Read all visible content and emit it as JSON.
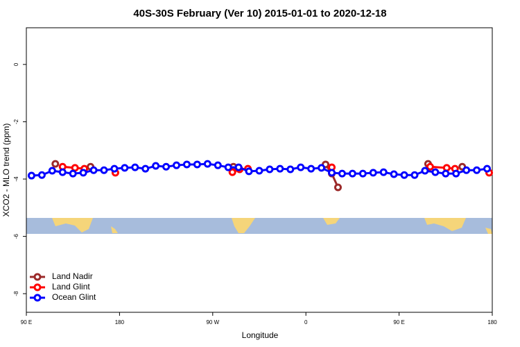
{
  "chart_data": {
    "type": "line",
    "title": "40S-30S February (Ver 10)   2015-01-01 to 2020-12-18",
    "x_label": "Longitude",
    "y_label": "XCO2 - MLO trend (ppm)",
    "xlim": [
      90,
      540
    ],
    "xticks": [
      {
        "value": 90,
        "label": "90 E"
      },
      180,
      {
        "value": 270,
        "label": "90 W"
      },
      {
        "value": 360,
        "label": "0"
      },
      {
        "value": 450,
        "label": "90 E"
      },
      {
        "value": 540,
        "label": "180"
      }
    ],
    "ylim": [
      -8.65,
      1.28
    ],
    "yticks": [
      0,
      -2,
      -4,
      -6,
      -8
    ],
    "legend": "bottom-left",
    "series": [
      {
        "name": "Land Nadir",
        "color": "#9b2a2a",
        "x": [
          118,
          null,
          152,
          null,
          290,
          null,
          379,
          385,
          391,
          null,
          478,
          null,
          511
        ],
        "values": [
          -3.47,
          null,
          -3.57,
          null,
          -3.57,
          null,
          -3.49,
          -3.81,
          -4.29,
          null,
          -3.47,
          null,
          -3.57
        ]
      },
      {
        "name": "Land Glint",
        "color": "#ff0000",
        "x": [
          125,
          137,
          146,
          null,
          176,
          null,
          289,
          296,
          304,
          null,
          385,
          null,
          480,
          496,
          504,
          null,
          537
        ],
        "values": [
          -3.57,
          -3.61,
          -3.64,
          null,
          -3.78,
          null,
          -3.76,
          -3.66,
          -3.64,
          null,
          -3.59,
          null,
          -3.57,
          -3.61,
          -3.64,
          null,
          -3.78
        ]
      },
      {
        "name": "Ocean Glint",
        "color": "#0000ff",
        "x": [
          95,
          105,
          115,
          125,
          135,
          145,
          155,
          165,
          175,
          185,
          195,
          205,
          215,
          225,
          235,
          245,
          255,
          265,
          275,
          285,
          295,
          305,
          315,
          325,
          335,
          345,
          355,
          365,
          375,
          385,
          395,
          405,
          415,
          425,
          435,
          445,
          455,
          465,
          475,
          485,
          495,
          505,
          515,
          525,
          535
        ],
        "values": [
          -3.88,
          -3.86,
          -3.71,
          -3.76,
          -3.81,
          -3.78,
          -3.69,
          -3.69,
          -3.64,
          -3.61,
          -3.59,
          -3.64,
          -3.54,
          -3.57,
          -3.52,
          -3.49,
          -3.49,
          -3.47,
          -3.52,
          -3.59,
          -3.59,
          -3.73,
          -3.71,
          -3.66,
          -3.64,
          -3.66,
          -3.59,
          -3.64,
          -3.61,
          -3.78,
          -3.81,
          -3.81,
          -3.81,
          -3.78,
          -3.76,
          -3.83,
          -3.86,
          -3.86,
          -3.71,
          -3.76,
          -3.81,
          -3.81,
          -3.69,
          -3.69,
          -3.64
        ]
      }
    ]
  }
}
